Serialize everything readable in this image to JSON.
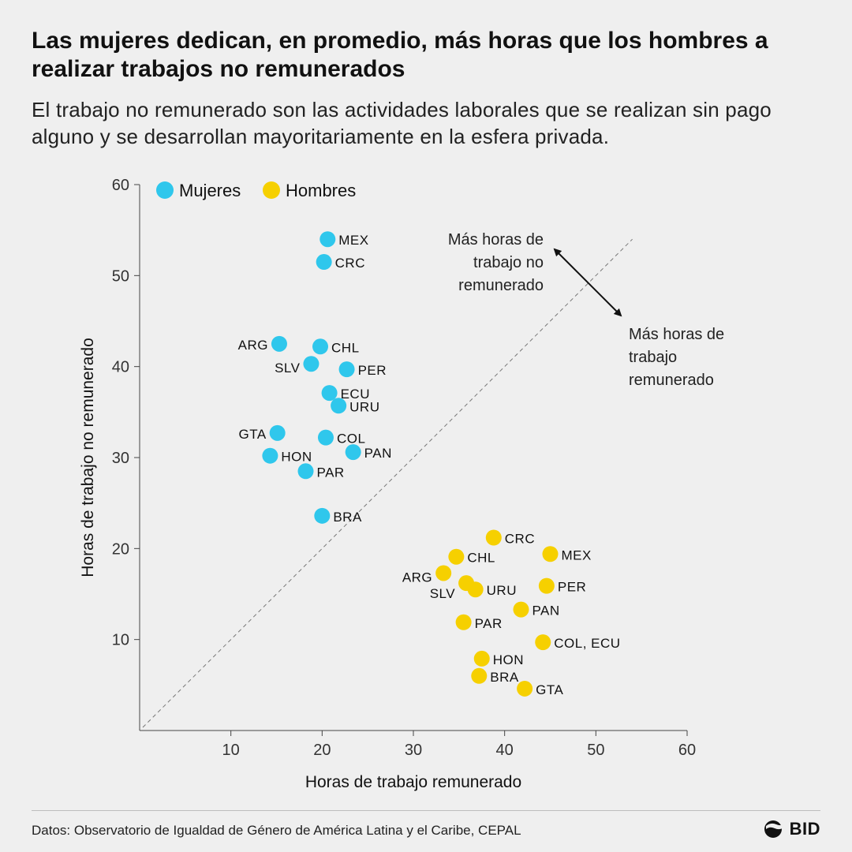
{
  "title": "Las mujeres dedican, en promedio, más horas que los hombres a realizar trabajos no remunerados",
  "subtitle": "El trabajo no remunerado son las actividades laborales que se realizan sin pago alguno y se desarrollan mayoritariamente en la esfera privada.",
  "source": "Datos: Observatorio de Igualdad de Género de América Latina y el Caribe, CEPAL",
  "logo": {
    "text": "BID",
    "icon": "bid-logo-icon"
  },
  "colors": {
    "mujeres": "#2fc7ec",
    "hombres": "#f6d000",
    "background": "#efefef",
    "axis": "#555555",
    "text": "#111111"
  },
  "chart_data": {
    "type": "scatter",
    "xlabel": "Horas de trabajo remunerado",
    "ylabel": "Horas de trabajo no remunerado",
    "xlim": [
      0,
      60
    ],
    "ylim": [
      0,
      60
    ],
    "x_ticks": [
      10,
      20,
      30,
      40,
      50,
      60
    ],
    "y_ticks": [
      10,
      20,
      30,
      40,
      50,
      60
    ],
    "grid": false,
    "legend_position": "top-left",
    "reference_line": "diagonal y = x (dashed)",
    "annotations": [
      {
        "text": [
          "Más horas de",
          "trabajo no",
          "remunerado"
        ]
      },
      {
        "text": [
          "Más horas de",
          "trabajo",
          "remunerado"
        ]
      }
    ],
    "series": [
      {
        "name": "Mujeres",
        "color": "#2fc7ec",
        "points": [
          {
            "label": "MEX",
            "x": 20.6,
            "y": 54.0
          },
          {
            "label": "CRC",
            "x": 20.2,
            "y": 51.5
          },
          {
            "label": "ARG",
            "x": 15.3,
            "y": 42.5
          },
          {
            "label": "CHL",
            "x": 19.8,
            "y": 42.2
          },
          {
            "label": "SLV",
            "x": 18.8,
            "y": 40.3
          },
          {
            "label": "PER",
            "x": 22.7,
            "y": 39.7
          },
          {
            "label": "ECU",
            "x": 20.8,
            "y": 37.1
          },
          {
            "label": "URU",
            "x": 21.8,
            "y": 35.7
          },
          {
            "label": "GTA",
            "x": 15.1,
            "y": 32.7
          },
          {
            "label": "COL",
            "x": 20.4,
            "y": 32.2
          },
          {
            "label": "PAN",
            "x": 23.4,
            "y": 30.6
          },
          {
            "label": "HON",
            "x": 14.3,
            "y": 30.2
          },
          {
            "label": "PAR",
            "x": 18.2,
            "y": 28.5
          },
          {
            "label": "BRA",
            "x": 20.0,
            "y": 23.6
          }
        ]
      },
      {
        "name": "Hombres",
        "color": "#f6d000",
        "points": [
          {
            "label": "CRC",
            "x": 38.8,
            "y": 21.2
          },
          {
            "label": "MEX",
            "x": 45.0,
            "y": 19.4
          },
          {
            "label": "CHL",
            "x": 34.7,
            "y": 19.1
          },
          {
            "label": "ARG",
            "x": 33.3,
            "y": 17.3
          },
          {
            "label": "SLV",
            "x": 35.8,
            "y": 16.2
          },
          {
            "label": "URU",
            "x": 36.8,
            "y": 15.5
          },
          {
            "label": "PER",
            "x": 44.6,
            "y": 15.9
          },
          {
            "label": "PAN",
            "x": 41.8,
            "y": 13.3
          },
          {
            "label": "PAR",
            "x": 35.5,
            "y": 11.9
          },
          {
            "label": "COL, ECU",
            "x": 44.2,
            "y": 9.7
          },
          {
            "label": "HON",
            "x": 37.5,
            "y": 7.9
          },
          {
            "label": "BRA",
            "x": 37.2,
            "y": 6.0
          },
          {
            "label": "GTA",
            "x": 42.2,
            "y": 4.6
          }
        ]
      }
    ]
  }
}
